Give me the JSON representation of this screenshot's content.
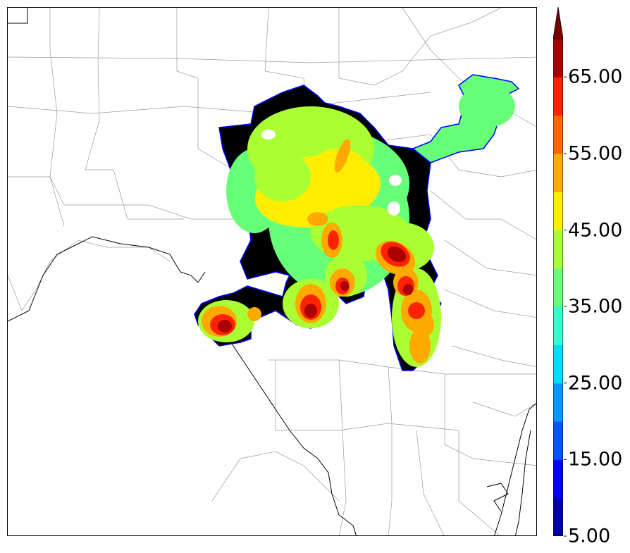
{
  "colorbar": {
    "levels": [
      5,
      10,
      15,
      20,
      25,
      30,
      35,
      40,
      45,
      50,
      55,
      60,
      65,
      70
    ],
    "colors": [
      "#0000aa",
      "#0000ff",
      "#0055ff",
      "#0099ff",
      "#00ddff",
      "#33ffcc",
      "#66ff77",
      "#aaff33",
      "#ffee00",
      "#ffaa00",
      "#ff6600",
      "#ff2200",
      "#aa0000"
    ],
    "extend_color": "#770000",
    "extend": "max",
    "tick_labels": [
      "5.00",
      "15.00",
      "25.00",
      "35.00",
      "45.00",
      "55.00",
      "65.00"
    ]
  },
  "map": {
    "boundary_color": "#000000",
    "county_line_color": "#9a9a9a"
  }
}
